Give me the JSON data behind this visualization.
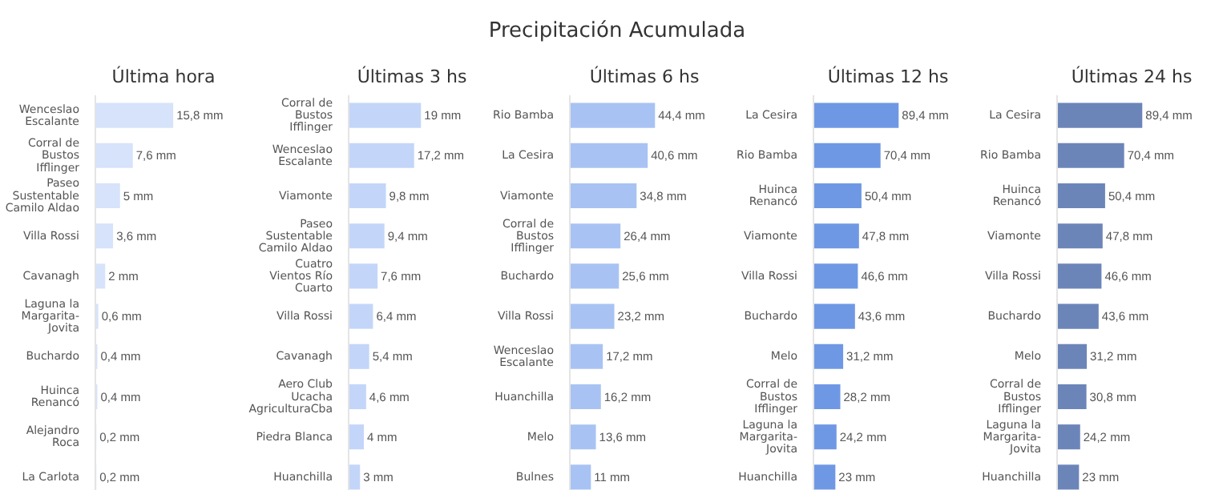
{
  "chart_data": [
    {
      "type": "bar",
      "orientation": "horizontal",
      "title": "Última hora",
      "annotations": [
        "Precipitación Acumulada"
      ],
      "tick_labels": "y",
      "color": "#d6e3fa",
      "categories": [
        "Wenceslao Escalante",
        "Corral de Bustos Ifflinger",
        "Paseo Sustentable Camilo Aldao",
        "Villa Rossi",
        "Cavanagh",
        "Laguna la Margarita-Jovita",
        "Buchardo",
        "Huinca Renancó",
        "Alejandro Roca",
        "La Carlota"
      ],
      "values": [
        15.8,
        7.6,
        5,
        3.6,
        2,
        0.6,
        0.4,
        0.4,
        0.2,
        0.2
      ],
      "value_labels": [
        "15,8 mm",
        "7,6 mm",
        "5 mm",
        "3,6 mm",
        "2 mm",
        "0,6 mm",
        "0,4 mm",
        "0,4 mm",
        "0,2 mm",
        "0,2 mm"
      ]
    },
    {
      "type": "bar",
      "orientation": "horizontal",
      "title": "Últimas 3 hs",
      "tick_labels": "y",
      "color": "#c3d6f9",
      "categories": [
        "Corral de Bustos Ifflinger",
        "Wenceslao Escalante",
        "Viamonte",
        "Paseo Sustentable Camilo Aldao",
        "Cuatro Vientos Río Cuarto",
        "Villa Rossi",
        "Cavanagh",
        "Aero Club Ucacha AgriculturaCba",
        "Piedra Blanca",
        "Huanchilla"
      ],
      "values": [
        19,
        17.2,
        9.8,
        9.4,
        7.6,
        6.4,
        5.4,
        4.6,
        4,
        3
      ],
      "value_labels": [
        "19 mm",
        "17,2 mm",
        "9,8 mm",
        "9,4 mm",
        "7,6 mm",
        "6,4 mm",
        "5,4 mm",
        "4,6 mm",
        "4 mm",
        "3 mm"
      ]
    },
    {
      "type": "bar",
      "orientation": "horizontal",
      "title": "Últimas 6 hs",
      "tick_labels": "y",
      "color": "#a8c3f3",
      "categories": [
        "Rio Bamba",
        "La Cesira",
        "Viamonte",
        "Corral de Bustos Ifflinger",
        "Buchardo",
        "Villa Rossi",
        "Wenceslao Escalante",
        "Huanchilla",
        "Melo",
        "Bulnes"
      ],
      "values": [
        44.4,
        40.6,
        34.8,
        26.4,
        25.6,
        23.2,
        17.2,
        16.2,
        13.6,
        11
      ],
      "value_labels": [
        "44,4 mm",
        "40,6 mm",
        "34,8 mm",
        "26,4 mm",
        "25,6 mm",
        "23,2 mm",
        "17,2 mm",
        "16,2 mm",
        "13,6 mm",
        "11 mm"
      ]
    },
    {
      "type": "bar",
      "orientation": "horizontal",
      "title": "Últimas 12 hs",
      "tick_labels": "y",
      "color": "#6f98e4",
      "categories": [
        "La Cesira",
        "Rio Bamba",
        "Huinca Renancó",
        "Viamonte",
        "Villa Rossi",
        "Buchardo",
        "Melo",
        "Corral de Bustos Ifflinger",
        "Laguna la Margarita-Jovita",
        "Huanchilla"
      ],
      "values": [
        89.4,
        70.4,
        50.4,
        47.8,
        46.6,
        43.6,
        31.2,
        28.2,
        24.2,
        23
      ],
      "value_labels": [
        "89,4 mm",
        "70,4 mm",
        "50,4 mm",
        "47,8 mm",
        "46,6 mm",
        "43,6 mm",
        "31,2 mm",
        "28,2 mm",
        "24,2 mm",
        "23 mm"
      ]
    },
    {
      "type": "bar",
      "orientation": "horizontal",
      "title": "Últimas 24 hs",
      "tick_labels": "y",
      "color": "#6c85b9",
      "categories": [
        "La Cesira",
        "Rio Bamba",
        "Huinca Renancó",
        "Viamonte",
        "Villa Rossi",
        "Buchardo",
        "Melo",
        "Corral de Bustos Ifflinger",
        "Laguna la Margarita-Jovita",
        "Huanchilla"
      ],
      "values": [
        89.4,
        70.4,
        50.4,
        47.8,
        46.6,
        43.6,
        31.2,
        30.8,
        24.2,
        23
      ],
      "value_labels": [
        "89,4 mm",
        "70,4 mm",
        "50,4 mm",
        "47,8 mm",
        "46,6 mm",
        "43,6 mm",
        "31,2 mm",
        "30,8 mm",
        "24,2 mm",
        "23 mm"
      ]
    }
  ]
}
